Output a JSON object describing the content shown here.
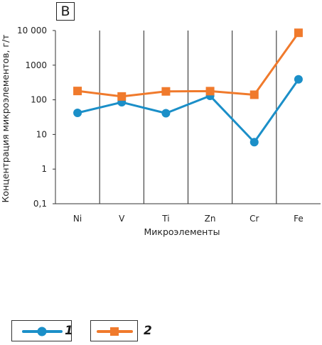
{
  "panel_label": "B",
  "chart_data": {
    "type": "line",
    "categories": [
      "Ni",
      "V",
      "Ti",
      "Zn",
      "Cr",
      "Fe"
    ],
    "series": [
      {
        "name": "1",
        "color": "#1b8fc8",
        "marker": "circle",
        "values": [
          42,
          85,
          41,
          130,
          6,
          390
        ]
      },
      {
        "name": "2",
        "color": "#f07a2c",
        "marker": "square",
        "values": [
          180,
          125,
          175,
          178,
          140,
          8600
        ]
      }
    ],
    "xlabel": "Микроэлементы",
    "ylabel": "Концентрация микроэлементов, г/т",
    "yscale": "log",
    "ylim": [
      0.1,
      10000
    ],
    "yticks": [
      0.1,
      1,
      10,
      100,
      1000,
      10000
    ],
    "ytick_labels": [
      "0,1",
      "1",
      "10",
      "100",
      "1000",
      "10 000"
    ],
    "grid": "vertical",
    "legend_position": "bottom-left"
  }
}
